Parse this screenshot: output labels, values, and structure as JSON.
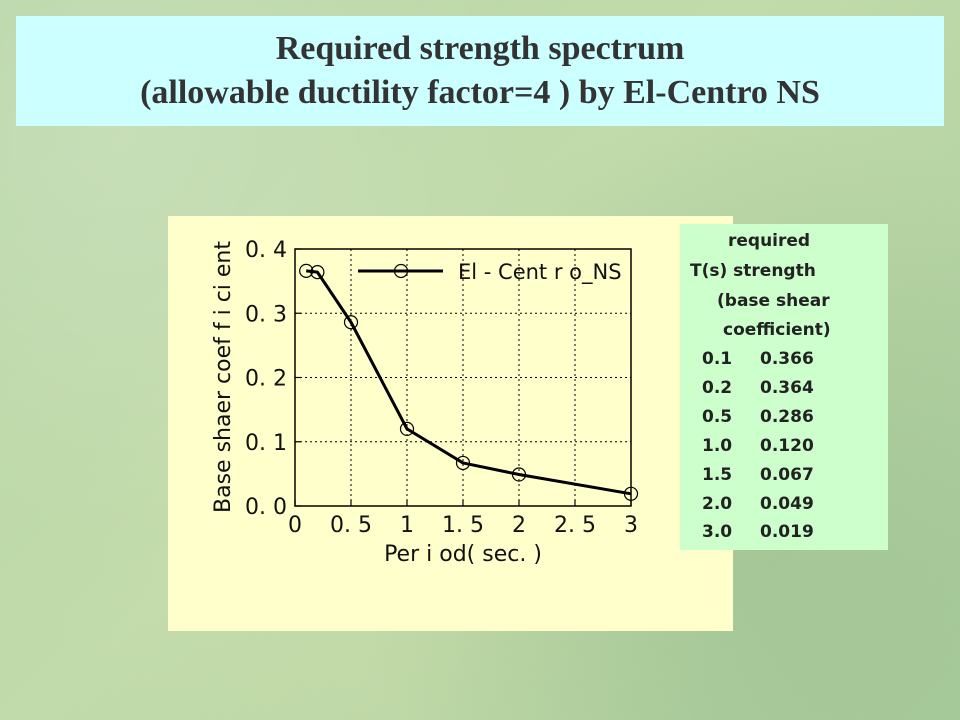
{
  "title": {
    "line1": "Required strength spectrum",
    "line2": "(allowable ductility factor=4 ) by El-Centro NS"
  },
  "chart_data": {
    "type": "line",
    "xlabel": "Per i od( sec. )",
    "ylabel": "Base shaer  coef f i ci ent",
    "xlim": [
      0,
      3
    ],
    "ylim": [
      0,
      0.4
    ],
    "x_ticks": [
      "0",
      "0. 5",
      "1",
      "1. 5",
      "2",
      "2. 5",
      "3"
    ],
    "y_ticks": [
      "0. 0",
      "0. 1",
      "0. 2",
      "0. 3",
      "0. 4"
    ],
    "grid": true,
    "legend_position": "top-right",
    "series": [
      {
        "name": "El - Cent r o_NS",
        "color": "#000000",
        "marker": "circle",
        "x": [
          0.1,
          0.2,
          0.5,
          1.0,
          1.5,
          2.0,
          3.0
        ],
        "y": [
          0.366,
          0.364,
          0.286,
          0.12,
          0.067,
          0.049,
          0.019
        ]
      }
    ]
  },
  "table": {
    "header_required": "required",
    "header_ts_strength": "T(s) strength",
    "header_base_shear": "(base shear",
    "header_coefficient": "coefficient)",
    "rows": [
      {
        "t": "0.1",
        "v": "0.366"
      },
      {
        "t": "0.2",
        "v": "0.364"
      },
      {
        "t": "0.5",
        "v": "0.286"
      },
      {
        "t": "1.0",
        "v": "0.120"
      },
      {
        "t": "1.5",
        "v": "0.067"
      },
      {
        "t": "2.0",
        "v": "0.049"
      },
      {
        "t": "3.0",
        "v": "0.019"
      }
    ]
  }
}
